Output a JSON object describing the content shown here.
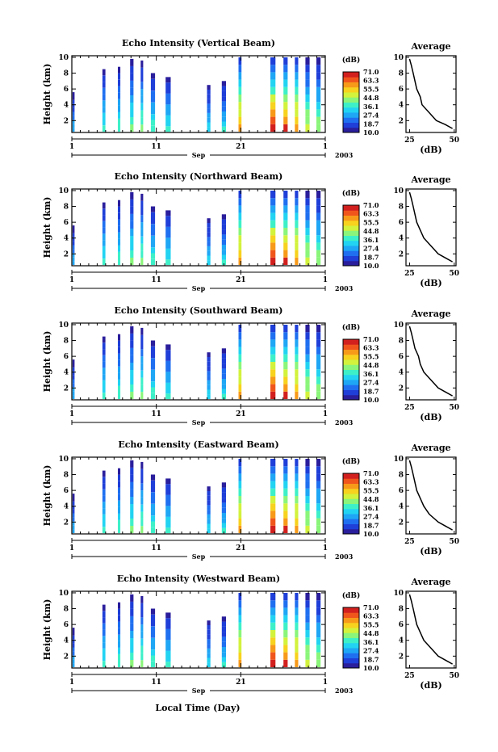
{
  "xlabel": "Local Time (Day)",
  "ylabel": "Height (km)",
  "month": "Sep",
  "year": "2003",
  "x_ticks": [
    "1",
    "11",
    "21",
    "1"
  ],
  "y_ticks": [
    "2",
    "4",
    "6",
    "8",
    "10"
  ],
  "colorbar": {
    "unit": "(dB)",
    "ticks": [
      "71.0",
      "63.3",
      "55.5",
      "44.8",
      "36.1",
      "27.4",
      "18.7",
      "10.0"
    ],
    "colors": [
      "#2a1e9c",
      "#1f3fd8",
      "#1f6ff0",
      "#1fa6f5",
      "#22d3f2",
      "#3ef0c8",
      "#8af57a",
      "#d2f23c",
      "#f7d21e",
      "#f79a1a",
      "#f0561c",
      "#d2201e"
    ]
  },
  "average": {
    "title": "Average",
    "xlabel": "(dB)",
    "x_ticks": [
      "25",
      "50"
    ],
    "y_ticks": [
      "2",
      "4",
      "6",
      "8",
      "10"
    ]
  },
  "chart_data": [
    {
      "type": "heatmap",
      "title": "Echo Intensity (Vertical Beam)",
      "xlabel": "",
      "ylabel": "Height (km)",
      "xlim": [
        1,
        31
      ],
      "ylim": [
        0.5,
        10.2
      ],
      "zlim": [
        10.0,
        71.0
      ],
      "avg_profile": {
        "height": [
          9.8,
          9,
          8,
          7,
          6,
          5,
          4,
          3,
          2,
          1.5,
          1
        ],
        "db": [
          25,
          26,
          27,
          28,
          29,
          31,
          32,
          36,
          40,
          45,
          49
        ]
      }
    },
    {
      "type": "heatmap",
      "title": "Echo Intensity (Northward Beam)",
      "xlabel": "",
      "ylabel": "Height (km)",
      "xlim": [
        1,
        31
      ],
      "ylim": [
        0.5,
        10.2
      ],
      "zlim": [
        10.0,
        71.0
      ],
      "avg_profile": {
        "height": [
          9.8,
          9,
          8,
          7,
          6,
          5,
          4,
          3,
          2,
          1.5,
          1
        ],
        "db": [
          25,
          26,
          27,
          28,
          29,
          31,
          33,
          37,
          41,
          45,
          49
        ]
      }
    },
    {
      "type": "heatmap",
      "title": "Echo Intensity (Southward Beam)",
      "xlabel": "",
      "ylabel": "Height (km)",
      "xlim": [
        1,
        31
      ],
      "ylim": [
        0.5,
        10.2
      ],
      "zlim": [
        10.0,
        71.0
      ],
      "avg_profile": {
        "height": [
          9.8,
          9,
          8,
          7,
          6,
          5,
          4,
          3,
          2,
          1.5,
          1
        ],
        "db": [
          25,
          26,
          27,
          28,
          30,
          31,
          33,
          37,
          41,
          45,
          49
        ]
      }
    },
    {
      "type": "heatmap",
      "title": "Echo Intensity (Eastward Beam)",
      "xlabel": "",
      "ylabel": "Height (km)",
      "xlim": [
        1,
        31
      ],
      "ylim": [
        0.5,
        10.2
      ],
      "zlim": [
        10.0,
        71.0
      ],
      "avg_profile": {
        "height": [
          9.8,
          9,
          8,
          7,
          6,
          5,
          4,
          3,
          2,
          1.5,
          1
        ],
        "db": [
          25,
          26,
          27,
          28,
          29,
          31,
          33,
          36,
          41,
          45,
          49
        ]
      }
    },
    {
      "type": "heatmap",
      "title": "Echo Intensity (Westward Beam)",
      "xlabel": "Local Time (Day)",
      "ylabel": "Height (km)",
      "xlim": [
        1,
        31
      ],
      "ylim": [
        0.5,
        10.2
      ],
      "zlim": [
        10.0,
        71.0
      ],
      "avg_profile": {
        "height": [
          9.8,
          9,
          8,
          7,
          6,
          5,
          4,
          3,
          2,
          1.5,
          1
        ],
        "db": [
          25,
          26,
          27,
          28,
          29,
          31,
          33,
          37,
          41,
          45,
          49
        ]
      }
    }
  ],
  "echo_events": [
    {
      "day": 1.2,
      "width": 0.25,
      "top": 5.6,
      "peak": 30
    },
    {
      "day": 4.8,
      "width": 0.35,
      "top": 8.5,
      "peak": 38
    },
    {
      "day": 6.6,
      "width": 0.3,
      "top": 8.8,
      "peak": 40
    },
    {
      "day": 8.1,
      "width": 0.4,
      "top": 9.8,
      "peak": 42
    },
    {
      "day": 9.3,
      "width": 0.3,
      "top": 9.6,
      "peak": 44
    },
    {
      "day": 10.6,
      "width": 0.5,
      "top": 8.0,
      "peak": 40
    },
    {
      "day": 12.4,
      "width": 0.6,
      "top": 7.5,
      "peak": 38
    },
    {
      "day": 17.2,
      "width": 0.4,
      "top": 6.5,
      "peak": 34
    },
    {
      "day": 19.0,
      "width": 0.5,
      "top": 7.0,
      "peak": 36
    },
    {
      "day": 20.9,
      "width": 0.35,
      "top": 10.0,
      "peak": 60
    },
    {
      "day": 24.8,
      "width": 0.6,
      "top": 10.0,
      "peak": 68
    },
    {
      "day": 26.3,
      "width": 0.5,
      "top": 10.0,
      "peak": 66
    },
    {
      "day": 27.6,
      "width": 0.4,
      "top": 10.0,
      "peak": 60
    },
    {
      "day": 28.9,
      "width": 0.5,
      "top": 10.0,
      "peak": 50
    },
    {
      "day": 30.2,
      "width": 0.5,
      "top": 10.0,
      "peak": 45
    }
  ]
}
